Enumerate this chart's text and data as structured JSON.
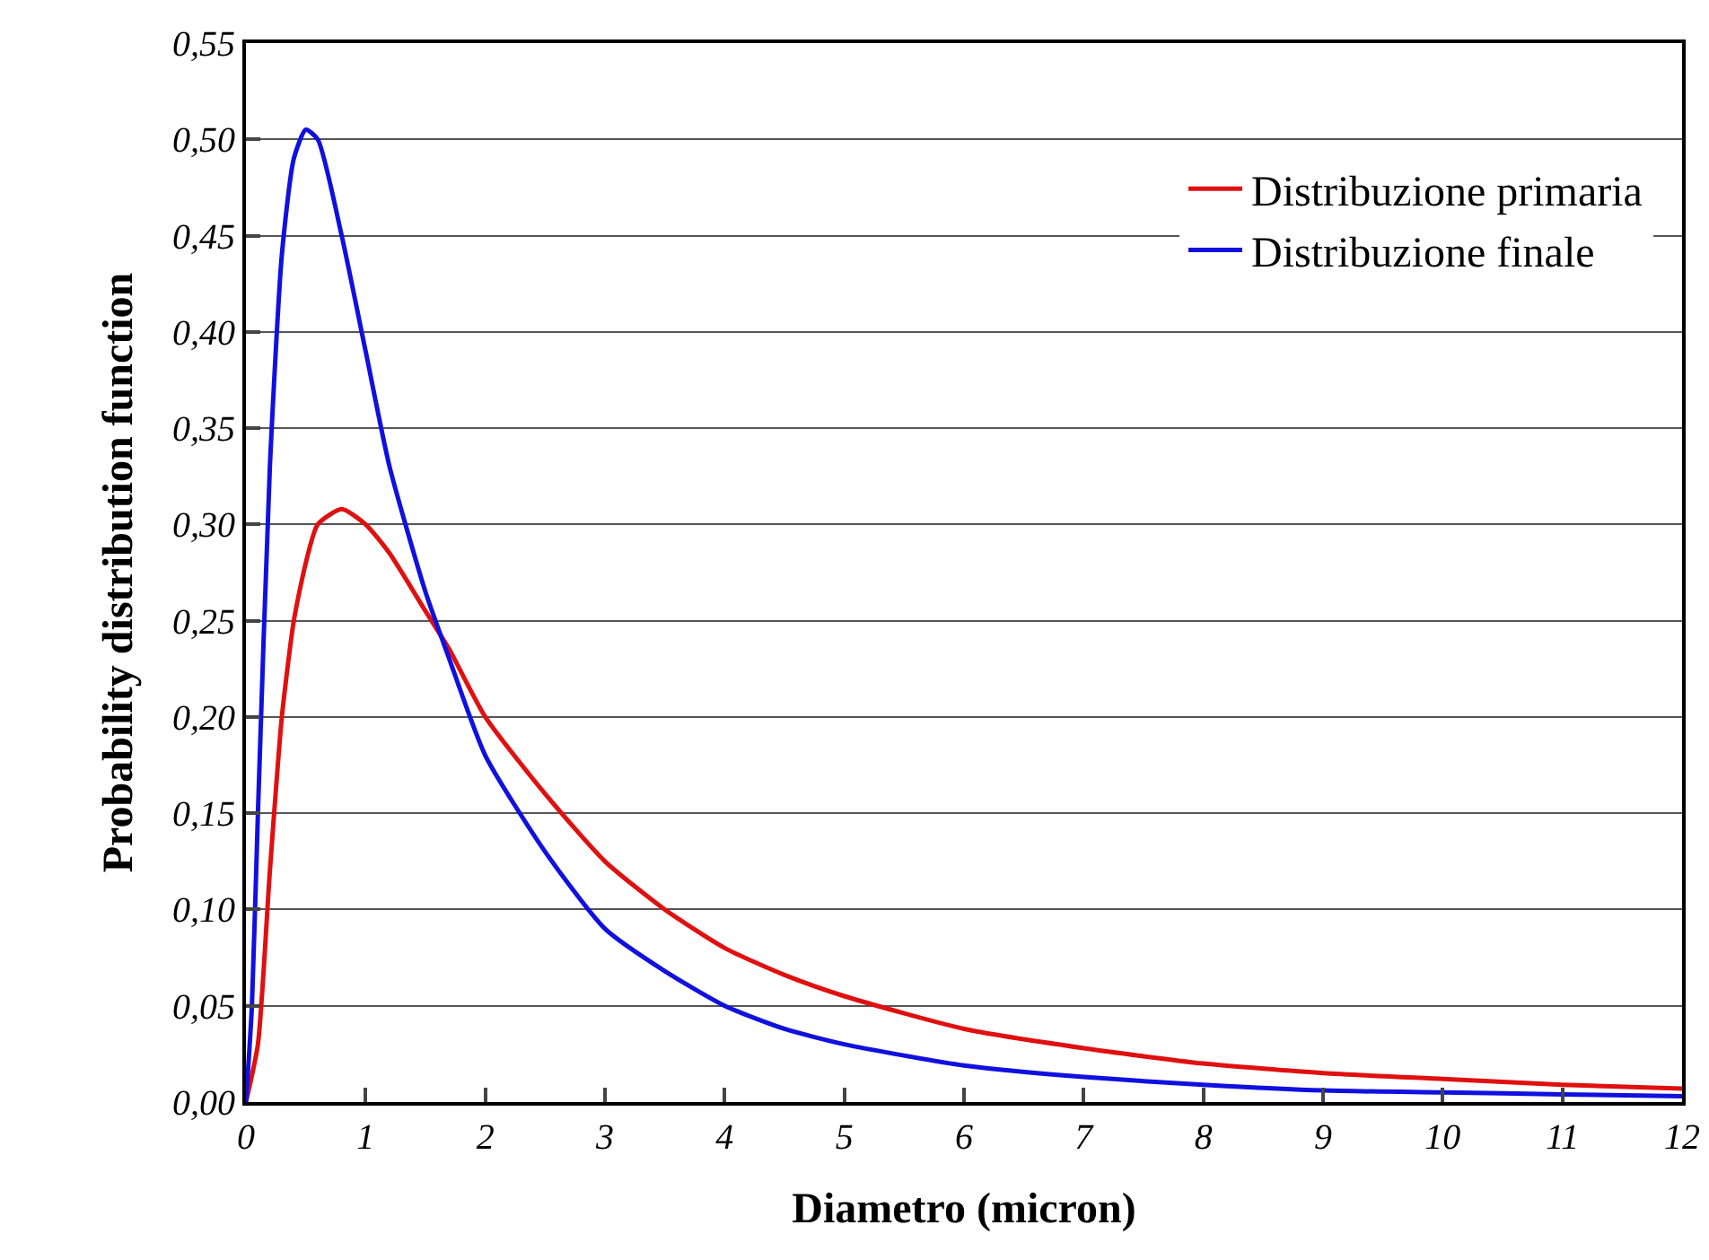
{
  "chart_data": {
    "type": "line",
    "xlabel": "Diametro (micron)",
    "ylabel": "Probability distribution function",
    "grid": "y",
    "legend": "top right",
    "marker": "none",
    "line_style": "solid",
    "xlim": [
      0,
      12
    ],
    "xticks": [
      0,
      1,
      2,
      3,
      4,
      5,
      6,
      7,
      8,
      9,
      10,
      11,
      12
    ],
    "ylim": [
      0,
      0.55
    ],
    "yticks": [
      {
        "value": 0,
        "label": "0,00"
      },
      {
        "value": 0.05,
        "label": "0,05"
      },
      {
        "value": 0.1,
        "label": "0,10"
      },
      {
        "value": 0.15,
        "label": "0,15"
      },
      {
        "value": 0.2,
        "label": "0,20"
      },
      {
        "value": 0.25,
        "label": "0,25"
      },
      {
        "value": 0.3,
        "label": "0,30"
      },
      {
        "value": 0.35,
        "label": "0,35"
      },
      {
        "value": 0.4,
        "label": "0,40"
      },
      {
        "value": 0.45,
        "label": "0,45"
      },
      {
        "value": 0.5,
        "label": "0,50"
      },
      {
        "value": 0.55,
        "label": "0,55"
      }
    ],
    "series": [
      {
        "name": "Distribuzione primaria",
        "color": "#e01010",
        "x": [
          0,
          0.1,
          0.2,
          0.3,
          0.4,
          0.5,
          0.6,
          0.8,
          1.0,
          1.2,
          1.5,
          1.7,
          2.0,
          2.5,
          3,
          3.5,
          4,
          4.5,
          5,
          6,
          7,
          8,
          9,
          10,
          11,
          12
        ],
        "values": [
          0,
          0.03,
          0.12,
          0.2,
          0.25,
          0.28,
          0.3,
          0.308,
          0.3,
          0.285,
          0.255,
          0.235,
          0.2,
          0.16,
          0.125,
          0.1,
          0.08,
          0.066,
          0.055,
          0.038,
          0.028,
          0.02,
          0.015,
          0.012,
          0.009,
          0.007
        ]
      },
      {
        "name": "Distribuzione finale",
        "color": "#1010e0",
        "x": [
          0,
          0.05,
          0.1,
          0.2,
          0.3,
          0.4,
          0.5,
          0.6,
          0.8,
          1.0,
          1.2,
          1.5,
          1.7,
          2,
          2.5,
          3,
          3.5,
          4,
          4.5,
          5,
          6,
          7,
          8,
          9,
          10,
          11,
          12
        ],
        "values": [
          0,
          0.05,
          0.15,
          0.33,
          0.44,
          0.49,
          0.505,
          0.5,
          0.45,
          0.39,
          0.33,
          0.265,
          0.23,
          0.18,
          0.13,
          0.09,
          0.068,
          0.05,
          0.038,
          0.03,
          0.019,
          0.013,
          0.009,
          0.006,
          0.005,
          0.004,
          0.003
        ]
      }
    ]
  }
}
